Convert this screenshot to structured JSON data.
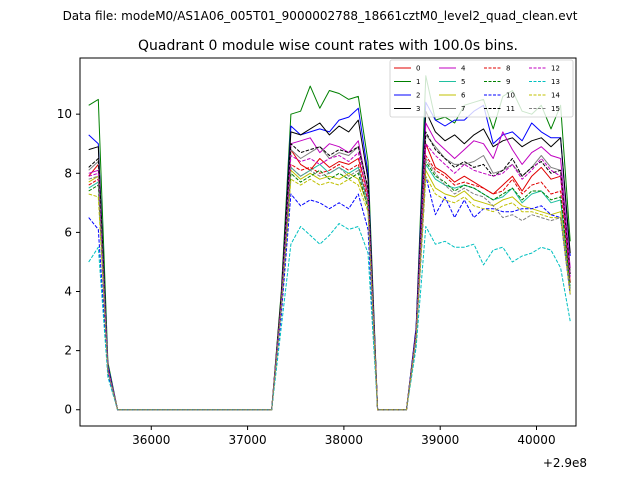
{
  "header": {
    "data_file": "Data file: modeM0/AS1A06_005T01_9000002788_18661cztM0_level2_quad_clean.evt"
  },
  "chart_data": {
    "type": "line",
    "title": "Quadrant 0 module wise count rates with 100.0s bins.",
    "xlabel": "",
    "ylabel": "",
    "x_offset_label": "+2.9e8",
    "xlim": [
      35260,
      40410
    ],
    "ylim": [
      -0.55,
      11.9
    ],
    "xticks": [
      {
        "value": 36000,
        "label": "36000"
      },
      {
        "value": 37000,
        "label": "37000"
      },
      {
        "value": 38000,
        "label": "38000"
      },
      {
        "value": 39000,
        "label": "39000"
      },
      {
        "value": 40000,
        "label": "40000"
      }
    ],
    "yticks": [
      {
        "value": 0,
        "label": "0"
      },
      {
        "value": 2,
        "label": "2"
      },
      {
        "value": 4,
        "label": "4"
      },
      {
        "value": 6,
        "label": "6"
      },
      {
        "value": 8,
        "label": "8"
      },
      {
        "value": 10,
        "label": "10"
      }
    ],
    "legend_position": "top-right",
    "legend_columns": 4,
    "x": [
      35350,
      35450,
      35550,
      35650,
      35750,
      35850,
      35950,
      36050,
      36150,
      36250,
      36350,
      36450,
      36550,
      36650,
      36750,
      36850,
      36950,
      37050,
      37150,
      37250,
      37350,
      37450,
      37550,
      37650,
      37750,
      37850,
      37950,
      38050,
      38150,
      38250,
      38350,
      38450,
      38550,
      38650,
      38750,
      38850,
      38950,
      39050,
      39150,
      39250,
      39350,
      39450,
      39550,
      39650,
      39750,
      39850,
      39950,
      40050,
      40150,
      40250,
      40350
    ],
    "series": [
      {
        "name": "0",
        "color": "#e00000",
        "dash": "solid",
        "values": [
          7.9,
          8.3,
          1.4,
          0,
          0,
          0,
          0,
          0,
          0,
          0,
          0,
          0,
          0,
          0,
          0,
          0,
          0,
          0,
          0,
          0,
          3.6,
          8.8,
          8.3,
          8.1,
          8.5,
          8.2,
          8.4,
          8.3,
          8.5,
          7.3,
          0,
          0,
          0,
          0,
          2.6,
          9.0,
          8.2,
          8.0,
          7.7,
          7.9,
          7.7,
          7.5,
          7.3,
          7.6,
          7.9,
          7.4,
          7.9,
          8.2,
          7.8,
          7.9,
          4.3
        ]
      },
      {
        "name": "1",
        "color": "#008000",
        "dash": "solid",
        "values": [
          10.3,
          10.5,
          1.6,
          0,
          0,
          0,
          0,
          0,
          0,
          0,
          0,
          0,
          0,
          0,
          0,
          0,
          0,
          0,
          0,
          0,
          4.0,
          10.0,
          10.1,
          10.95,
          10.2,
          10.8,
          10.7,
          10.5,
          10.6,
          8.4,
          0,
          0,
          0,
          0,
          2.7,
          11.3,
          9.8,
          9.9,
          9.7,
          10.3,
          10.4,
          10.5,
          9.5,
          10.6,
          10.8,
          10.1,
          10.0,
          10.3,
          9.5,
          10.3,
          5.7
        ]
      },
      {
        "name": "2",
        "color": "#0000ff",
        "dash": "solid",
        "values": [
          9.3,
          9.0,
          1.5,
          0,
          0,
          0,
          0,
          0,
          0,
          0,
          0,
          0,
          0,
          0,
          0,
          0,
          0,
          0,
          0,
          0,
          3.8,
          9.6,
          9.3,
          9.4,
          9.5,
          9.4,
          9.8,
          9.9,
          10.2,
          8.0,
          0,
          0,
          0,
          0,
          2.8,
          10.4,
          9.8,
          9.6,
          9.8,
          9.8,
          10.1,
          10.3,
          9.0,
          9.3,
          9.4,
          9.1,
          9.7,
          9.4,
          9.2,
          9.2,
          5.2
        ]
      },
      {
        "name": "3",
        "color": "#000000",
        "dash": "solid",
        "values": [
          8.8,
          8.9,
          1.4,
          0,
          0,
          0,
          0,
          0,
          0,
          0,
          0,
          0,
          0,
          0,
          0,
          0,
          0,
          0,
          0,
          0,
          3.9,
          9.4,
          9.3,
          9.5,
          9.7,
          9.3,
          9.6,
          9.4,
          9.8,
          7.8,
          0,
          0,
          0,
          0,
          2.7,
          10.1,
          9.4,
          9.1,
          9.3,
          9.0,
          9.3,
          9.5,
          8.9,
          9.1,
          9.2,
          8.9,
          9.1,
          9.2,
          8.9,
          9.2,
          5.3
        ]
      },
      {
        "name": "4",
        "color": "#c000c0",
        "dash": "solid",
        "values": [
          8.0,
          8.1,
          1.4,
          0,
          0,
          0,
          0,
          0,
          0,
          0,
          0,
          0,
          0,
          0,
          0,
          0,
          0,
          0,
          0,
          0,
          3.7,
          9.0,
          9.1,
          9.2,
          8.7,
          9.0,
          8.9,
          8.7,
          9.1,
          7.4,
          0,
          0,
          0,
          0,
          2.6,
          9.7,
          9.1,
          8.8,
          8.5,
          8.8,
          9.1,
          9.0,
          8.5,
          9.4,
          8.8,
          8.3,
          8.7,
          8.9,
          8.6,
          8.5,
          4.8
        ]
      },
      {
        "name": "5",
        "color": "#20c0a0",
        "dash": "solid",
        "values": [
          7.5,
          7.7,
          1.3,
          0,
          0,
          0,
          0,
          0,
          0,
          0,
          0,
          0,
          0,
          0,
          0,
          0,
          0,
          0,
          0,
          0,
          3.5,
          8.2,
          7.9,
          8.1,
          8.3,
          8.0,
          8.2,
          8.0,
          8.2,
          7.0,
          0,
          0,
          0,
          0,
          2.5,
          8.3,
          7.8,
          7.6,
          7.5,
          7.6,
          7.5,
          7.3,
          7.1,
          7.2,
          7.5,
          7.0,
          7.3,
          7.4,
          7.0,
          7.1,
          4.1
        ]
      },
      {
        "name": "6",
        "color": "#c0c000",
        "dash": "solid",
        "values": [
          7.7,
          7.9,
          1.3,
          0,
          0,
          0,
          0,
          0,
          0,
          0,
          0,
          0,
          0,
          0,
          0,
          0,
          0,
          0,
          0,
          0,
          3.5,
          8.1,
          7.8,
          8.0,
          7.8,
          7.9,
          7.8,
          8.0,
          7.8,
          6.9,
          0,
          0,
          0,
          0,
          2.5,
          8.1,
          7.5,
          7.3,
          7.2,
          7.4,
          7.1,
          7.0,
          6.9,
          7.1,
          7.2,
          6.9,
          6.8,
          6.7,
          6.6,
          6.7,
          4.0
        ]
      },
      {
        "name": "7",
        "color": "#808080",
        "dash": "solid",
        "values": [
          8.1,
          8.4,
          1.4,
          0,
          0,
          0,
          0,
          0,
          0,
          0,
          0,
          0,
          0,
          0,
          0,
          0,
          0,
          0,
          0,
          0,
          3.7,
          8.8,
          8.5,
          8.7,
          8.9,
          8.5,
          8.7,
          8.6,
          8.9,
          7.4,
          0,
          0,
          0,
          0,
          2.6,
          9.3,
          8.9,
          8.5,
          8.3,
          8.3,
          8.4,
          8.6,
          8.0,
          8.1,
          8.3,
          7.9,
          8.2,
          8.6,
          8.2,
          8.1,
          4.6
        ]
      },
      {
        "name": "8",
        "color": "#e00000",
        "dash": "dashed",
        "values": [
          7.6,
          7.8,
          1.3,
          0,
          0,
          0,
          0,
          0,
          0,
          0,
          0,
          0,
          0,
          0,
          0,
          0,
          0,
          0,
          0,
          0,
          3.6,
          8.3,
          8.1,
          8.2,
          8.0,
          8.1,
          8.3,
          8.1,
          8.3,
          7.1,
          0,
          0,
          0,
          0,
          2.5,
          8.6,
          8.1,
          7.9,
          7.6,
          7.7,
          7.6,
          7.5,
          7.3,
          7.4,
          7.8,
          7.3,
          7.6,
          7.7,
          7.3,
          7.4,
          4.3
        ]
      },
      {
        "name": "9",
        "color": "#008000",
        "dash": "dashed",
        "values": [
          7.4,
          7.6,
          1.3,
          0,
          0,
          0,
          0,
          0,
          0,
          0,
          0,
          0,
          0,
          0,
          0,
          0,
          0,
          0,
          0,
          0,
          3.5,
          8.0,
          7.7,
          7.9,
          8.1,
          7.8,
          8.0,
          7.8,
          8.0,
          6.8,
          0,
          0,
          0,
          0,
          2.5,
          8.4,
          7.9,
          7.7,
          7.4,
          7.6,
          7.5,
          7.3,
          7.1,
          7.3,
          7.5,
          7.1,
          7.4,
          7.4,
          7.1,
          7.2,
          4.2
        ]
      },
      {
        "name": "10",
        "color": "#0000ff",
        "dash": "dashed",
        "values": [
          6.5,
          6.1,
          1.2,
          0,
          0,
          0,
          0,
          0,
          0,
          0,
          0,
          0,
          0,
          0,
          0,
          0,
          0,
          0,
          0,
          0,
          3.2,
          7.3,
          6.9,
          7.1,
          7.0,
          6.8,
          7.0,
          6.8,
          7.3,
          6.1,
          0,
          0,
          0,
          0,
          2.3,
          7.9,
          6.6,
          7.2,
          6.5,
          7.1,
          6.5,
          6.8,
          6.8,
          6.7,
          6.7,
          6.8,
          6.8,
          6.9,
          6.6,
          6.5,
          3.9
        ]
      },
      {
        "name": "11",
        "color": "#000000",
        "dash": "dashed",
        "values": [
          8.2,
          8.5,
          1.4,
          0,
          0,
          0,
          0,
          0,
          0,
          0,
          0,
          0,
          0,
          0,
          0,
          0,
          0,
          0,
          0,
          0,
          3.7,
          9.0,
          8.7,
          8.8,
          8.9,
          8.6,
          8.8,
          8.7,
          8.9,
          7.5,
          0,
          0,
          0,
          0,
          2.6,
          9.4,
          8.8,
          8.5,
          8.2,
          8.4,
          8.2,
          8.3,
          7.9,
          8.1,
          8.5,
          7.9,
          8.2,
          8.4,
          8.0,
          8.1,
          4.6
        ]
      },
      {
        "name": "12",
        "color": "#c000c0",
        "dash": "dashed",
        "values": [
          7.9,
          8.0,
          1.4,
          0,
          0,
          0,
          0,
          0,
          0,
          0,
          0,
          0,
          0,
          0,
          0,
          0,
          0,
          0,
          0,
          0,
          3.6,
          8.6,
          8.4,
          8.5,
          8.3,
          8.5,
          8.6,
          8.4,
          8.7,
          7.2,
          0,
          0,
          0,
          0,
          2.6,
          9.0,
          8.6,
          8.3,
          8.0,
          8.3,
          8.1,
          8.0,
          7.9,
          8.0,
          8.3,
          7.8,
          8.1,
          8.5,
          8.1,
          7.9,
          4.5
        ]
      },
      {
        "name": "13",
        "color": "#00c0c0",
        "dash": "dashed",
        "values": [
          5.0,
          5.5,
          1.1,
          0,
          0,
          0,
          0,
          0,
          0,
          0,
          0,
          0,
          0,
          0,
          0,
          0,
          0,
          0,
          0,
          0,
          2.8,
          5.6,
          6.2,
          5.9,
          5.6,
          5.9,
          6.3,
          6.1,
          6.2,
          5.3,
          0,
          0,
          0,
          0,
          2.1,
          6.2,
          5.6,
          5.7,
          5.5,
          5.5,
          5.6,
          4.9,
          5.4,
          5.5,
          5.0,
          5.2,
          5.3,
          5.5,
          5.4,
          4.8,
          3.0
        ]
      },
      {
        "name": "14",
        "color": "#c0c000",
        "dash": "dashed",
        "values": [
          7.3,
          7.2,
          1.3,
          0,
          0,
          0,
          0,
          0,
          0,
          0,
          0,
          0,
          0,
          0,
          0,
          0,
          0,
          0,
          0,
          0,
          3.4,
          7.8,
          7.6,
          7.8,
          7.6,
          7.7,
          7.6,
          7.8,
          7.6,
          6.7,
          0,
          0,
          0,
          0,
          2.4,
          7.9,
          7.3,
          7.1,
          7.0,
          7.2,
          6.9,
          6.8,
          6.7,
          6.9,
          7.0,
          6.7,
          6.7,
          6.6,
          6.5,
          6.5,
          3.9
        ]
      },
      {
        "name": "15",
        "color": "#808080",
        "dash": "dashed",
        "values": [
          7.8,
          7.9,
          1.3,
          0,
          0,
          0,
          0,
          0,
          0,
          0,
          0,
          0,
          0,
          0,
          0,
          0,
          0,
          0,
          0,
          0,
          3.5,
          8.2,
          7.9,
          8.1,
          7.9,
          8.0,
          8.2,
          7.9,
          8.1,
          6.9,
          0,
          0,
          0,
          0,
          2.5,
          8.5,
          8.0,
          7.6,
          7.3,
          7.5,
          7.3,
          7.2,
          6.9,
          6.5,
          6.6,
          6.4,
          6.6,
          6.5,
          6.4,
          6.5,
          4.1
        ]
      }
    ]
  }
}
